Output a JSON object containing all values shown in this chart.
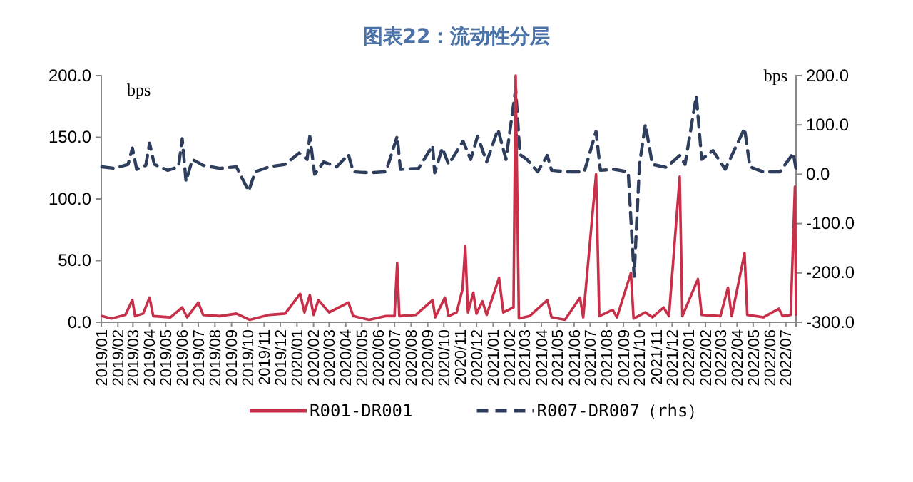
{
  "chart_data": {
    "type": "line",
    "title": "图表22：流动性分层",
    "ylabel": "bps",
    "y2label": "bps",
    "legend": "bottom",
    "xlim": [
      "2019-01-01",
      "2022-07-20"
    ],
    "xticks": [
      {
        "value": "2019-01",
        "label": "2019/01"
      },
      {
        "value": "2019-02",
        "label": "2019/02"
      },
      {
        "value": "2019-03",
        "label": "2019/03"
      },
      {
        "value": "2019-04",
        "label": "2019/04"
      },
      {
        "value": "2019-05",
        "label": "2019/05"
      },
      {
        "value": "2019-06",
        "label": "2019/06"
      },
      {
        "value": "2019-07",
        "label": "2019/07"
      },
      {
        "value": "2019-08",
        "label": "2019/08"
      },
      {
        "value": "2019-09",
        "label": "2019/09"
      },
      {
        "value": "2019-10",
        "label": "2019/10"
      },
      {
        "value": "2019-11",
        "label": "2019/11"
      },
      {
        "value": "2019-12",
        "label": "2019/12"
      },
      {
        "value": "2020-01",
        "label": "2020/01"
      },
      {
        "value": "2020-02",
        "label": "2020/02"
      },
      {
        "value": "2020-03",
        "label": "2020/03"
      },
      {
        "value": "2020-04",
        "label": "2020/04"
      },
      {
        "value": "2020-05",
        "label": "2020/05"
      },
      {
        "value": "2020-06",
        "label": "2020/06"
      },
      {
        "value": "2020-07",
        "label": "2020/07"
      },
      {
        "value": "2020-08",
        "label": "2020/08"
      },
      {
        "value": "2020-09",
        "label": "2020/09"
      },
      {
        "value": "2020-10",
        "label": "2020/10"
      },
      {
        "value": "2020-11",
        "label": "2020/11"
      },
      {
        "value": "2020-12",
        "label": "2020/12"
      },
      {
        "value": "2021-01",
        "label": "2021/01"
      },
      {
        "value": "2021-02",
        "label": "2021/02"
      },
      {
        "value": "2021-03",
        "label": "2021/03"
      },
      {
        "value": "2021-04",
        "label": "2021/04"
      },
      {
        "value": "2021-05",
        "label": "2021/05"
      },
      {
        "value": "2021-06",
        "label": "2021/06"
      },
      {
        "value": "2021-07",
        "label": "2021/07"
      },
      {
        "value": "2021-08",
        "label": "2021/08"
      },
      {
        "value": "2021-09",
        "label": "2021/09"
      },
      {
        "value": "2021-10",
        "label": "2021/10"
      },
      {
        "value": "2021-11",
        "label": "2021/11"
      },
      {
        "value": "2021-12",
        "label": "2021/12"
      },
      {
        "value": "2022-01",
        "label": "2022/01"
      },
      {
        "value": "2022-02",
        "label": "2022/02"
      },
      {
        "value": "2022-03",
        "label": "2022/03"
      },
      {
        "value": "2022-04",
        "label": "2022/04"
      },
      {
        "value": "2022-05",
        "label": "2022/05"
      },
      {
        "value": "2022-06",
        "label": "2022/06"
      },
      {
        "value": "2022-07",
        "label": "2022/07"
      }
    ],
    "ylim": [
      0,
      200
    ],
    "yticks": [
      {
        "value": 0,
        "label": "0.0"
      },
      {
        "value": 50,
        "label": "50.0"
      },
      {
        "value": 100,
        "label": "100.0"
      },
      {
        "value": 150,
        "label": "150.0"
      },
      {
        "value": 200,
        "label": "200.0"
      }
    ],
    "y2lim": [
      -300,
      200
    ],
    "y2ticks": [
      {
        "value": -300,
        "label": "-300.0"
      },
      {
        "value": -200,
        "label": "-200.0"
      },
      {
        "value": -100,
        "label": "-100.0"
      },
      {
        "value": 0,
        "label": "0.0"
      },
      {
        "value": 100,
        "label": "100.0"
      },
      {
        "value": 200,
        "label": "200.0"
      }
    ],
    "series": [
      {
        "name": "R001-DR001",
        "color": "#c8304a",
        "line_style": "solid",
        "x": [
          "2019-01-02",
          "2019-01-20",
          "2019-02-15",
          "2019-02-28",
          "2019-03-05",
          "2019-03-20",
          "2019-04-01",
          "2019-04-08",
          "2019-05-10",
          "2019-06-01",
          "2019-06-10",
          "2019-07-01",
          "2019-07-10",
          "2019-08-10",
          "2019-09-10",
          "2019-10-05",
          "2019-11-10",
          "2019-12-10",
          "2020-01-07",
          "2020-01-15",
          "2020-01-25",
          "2020-02-01",
          "2020-02-10",
          "2020-03-01",
          "2020-04-06",
          "2020-04-15",
          "2020-05-15",
          "2020-06-15",
          "2020-07-01",
          "2020-07-06",
          "2020-07-10",
          "2020-08-10",
          "2020-09-10",
          "2020-09-15",
          "2020-10-03",
          "2020-10-10",
          "2020-10-25",
          "2020-11-05",
          "2020-11-10",
          "2020-11-15",
          "2020-11-25",
          "2020-12-01",
          "2020-12-12",
          "2020-12-20",
          "2021-01-12",
          "2021-01-20",
          "2021-02-08",
          "2021-02-12",
          "2021-02-18",
          "2021-03-10",
          "2021-04-12",
          "2021-04-20",
          "2021-05-15",
          "2021-06-12",
          "2021-06-18",
          "2021-07-12",
          "2021-07-18",
          "2021-08-12",
          "2021-08-20",
          "2021-09-15",
          "2021-09-20",
          "2021-10-12",
          "2021-10-25",
          "2021-11-15",
          "2021-11-25",
          "2021-12-15",
          "2021-12-20",
          "2022-01-18",
          "2022-01-25",
          "2022-03-01",
          "2022-03-15",
          "2022-03-22",
          "2022-04-15",
          "2022-04-20",
          "2022-05-20",
          "2022-06-18",
          "2022-06-25",
          "2022-07-10",
          "2022-07-18",
          "2022-07-20"
        ],
        "values": [
          5,
          3,
          6,
          18,
          5,
          7,
          20,
          5,
          4,
          12,
          4,
          16,
          6,
          5,
          7,
          2,
          6,
          7,
          23,
          8,
          22,
          6,
          18,
          8,
          16,
          5,
          2,
          5,
          5,
          48,
          5,
          6,
          18,
          4,
          20,
          5,
          8,
          27,
          62,
          8,
          24,
          7,
          17,
          6,
          36,
          8,
          12,
          200,
          3,
          5,
          18,
          4,
          2,
          20,
          4,
          120,
          5,
          10,
          4,
          40,
          3,
          8,
          4,
          12,
          5,
          118,
          5,
          35,
          6,
          5,
          28,
          5,
          56,
          6,
          4,
          11,
          5,
          6,
          110,
          6
        ]
      },
      {
        "name": "R007-DR007（rhs）",
        "color": "#2e3e5c",
        "axis": "y2",
        "line_style": "dashed",
        "x": [
          "2019-01-02",
          "2019-01-25",
          "2019-02-20",
          "2019-02-28",
          "2019-03-08",
          "2019-03-25",
          "2019-04-01",
          "2019-04-10",
          "2019-05-05",
          "2019-05-25",
          "2019-06-01",
          "2019-06-08",
          "2019-06-20",
          "2019-07-10",
          "2019-08-10",
          "2019-09-10",
          "2019-10-03",
          "2019-10-15",
          "2019-11-10",
          "2019-12-10",
          "2020-01-05",
          "2020-01-20",
          "2020-01-25",
          "2020-02-03",
          "2020-02-20",
          "2020-03-15",
          "2020-04-06",
          "2020-04-15",
          "2020-05-15",
          "2020-06-15",
          "2020-07-06",
          "2020-07-12",
          "2020-08-15",
          "2020-09-10",
          "2020-09-14",
          "2020-09-28",
          "2020-10-10",
          "2020-11-06",
          "2020-11-20",
          "2020-12-03",
          "2020-12-20",
          "2021-01-10",
          "2021-01-25",
          "2021-02-12",
          "2021-02-20",
          "2021-03-06",
          "2021-03-25",
          "2021-04-12",
          "2021-04-20",
          "2021-05-20",
          "2021-06-20",
          "2021-07-12",
          "2021-07-20",
          "2021-08-15",
          "2021-09-10",
          "2021-09-21",
          "2021-10-01",
          "2021-10-12",
          "2021-10-25",
          "2021-11-20",
          "2021-12-15",
          "2021-12-25",
          "2022-01-15",
          "2022-01-25",
          "2022-02-15",
          "2022-03-10",
          "2022-04-15",
          "2022-04-25",
          "2022-05-20",
          "2022-06-20",
          "2022-07-15",
          "2022-07-20"
        ],
        "values": [
          15,
          12,
          20,
          53,
          10,
          18,
          63,
          20,
          8,
          15,
          72,
          -14,
          30,
          18,
          12,
          15,
          -34,
          5,
          15,
          20,
          43,
          30,
          77,
          0,
          25,
          15,
          40,
          5,
          3,
          5,
          77,
          10,
          12,
          58,
          3,
          53,
          20,
          67,
          30,
          77,
          25,
          91,
          30,
          173,
          40,
          29,
          5,
          38,
          8,
          5,
          5,
          87,
          8,
          10,
          5,
          -207,
          20,
          101,
          20,
          14,
          38,
          20,
          159,
          30,
          48,
          10,
          93,
          15,
          5,
          5,
          43,
          10
        ]
      }
    ]
  }
}
